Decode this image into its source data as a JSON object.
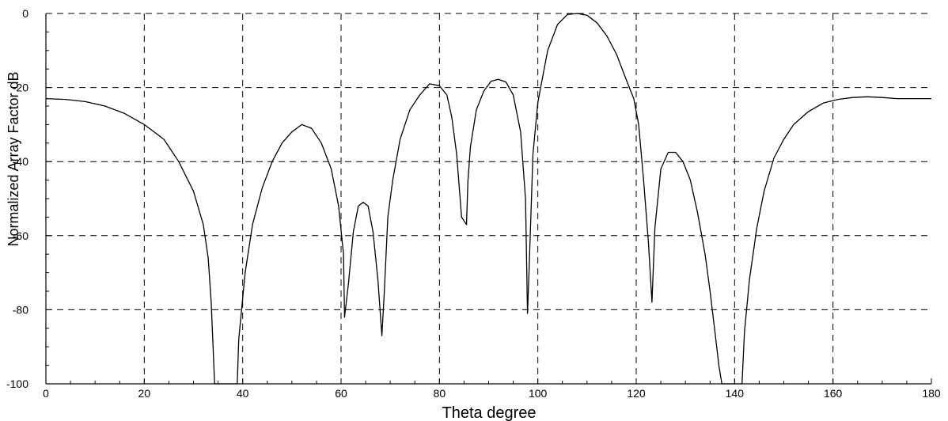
{
  "chart_data": {
    "type": "line",
    "title": "",
    "xlabel": "Theta degree",
    "ylabel": "Normalized Array Factor dB",
    "xlim": [
      0,
      180
    ],
    "ylim": [
      -100,
      0
    ],
    "xticks": [
      0,
      20,
      40,
      60,
      80,
      100,
      120,
      140,
      160,
      180
    ],
    "yticks": [
      0,
      -20,
      -40,
      -60,
      -80,
      -100
    ],
    "grid": true,
    "legend": "none",
    "colors": {
      "line": "#000000",
      "grid": "#000000",
      "background": "#ffffff"
    },
    "series": [
      {
        "x": [
          0,
          4,
          8,
          12,
          16,
          20,
          24,
          27,
          30,
          32,
          33,
          33.6,
          34.3,
          38.9,
          39.2,
          40.5,
          42,
          44,
          46,
          48,
          50,
          52,
          54,
          56,
          58,
          59.5,
          60.5,
          60.7,
          61.5,
          62.5,
          63.5,
          64.5,
          65.5,
          66.5,
          67.5,
          68.3,
          68.8,
          69.5,
          70.5,
          72,
          74,
          76,
          78,
          80,
          81.5,
          82.5,
          83.5,
          84.5,
          85.5,
          85.8,
          86.3,
          87.5,
          89,
          90.5,
          92,
          93.5,
          95,
          96.5,
          97.5,
          97.9,
          98.2,
          99,
          100,
          102,
          104,
          106,
          108,
          110,
          112,
          114,
          116,
          118,
          119.5,
          120.5,
          121.5,
          122.5,
          123.2,
          123.8,
          125,
          126.5,
          128,
          129.5,
          131,
          132.5,
          134,
          135,
          136,
          136.8,
          137.4,
          141.5,
          142,
          143,
          144.5,
          146,
          148,
          150,
          152,
          155,
          158,
          161,
          164,
          167,
          170,
          173,
          176,
          180
        ],
        "y": [
          -23,
          -23.2,
          -23.8,
          -25,
          -27,
          -30,
          -34,
          -40,
          -48,
          -57,
          -66,
          -78,
          -100,
          -100,
          -88,
          -70,
          -57,
          -47,
          -40,
          -35,
          -32,
          -30,
          -31,
          -35,
          -42,
          -52,
          -65,
          -82,
          -73,
          -59,
          -52,
          -51,
          -52,
          -59,
          -72,
          -87,
          -75,
          -55,
          -45,
          -34,
          -26,
          -22,
          -19,
          -19.5,
          -22,
          -28,
          -38,
          -55,
          -57,
          -45,
          -36,
          -26,
          -21,
          -18.3,
          -17.8,
          -18.5,
          -22,
          -32,
          -50,
          -81,
          -70,
          -38,
          -24,
          -10,
          -3,
          -0.3,
          0,
          -0.5,
          -2.5,
          -6,
          -11,
          -18,
          -23,
          -30,
          -45,
          -62,
          -78,
          -58,
          -42,
          -37.5,
          -37.5,
          -40,
          -45,
          -54,
          -65,
          -75,
          -86,
          -95,
          -100,
          -100,
          -86,
          -72,
          -58,
          -48,
          -39,
          -34,
          -30,
          -26.5,
          -24.2,
          -23.2,
          -22.7,
          -22.5,
          -22.7,
          -23,
          -23,
          -23
        ]
      }
    ]
  }
}
